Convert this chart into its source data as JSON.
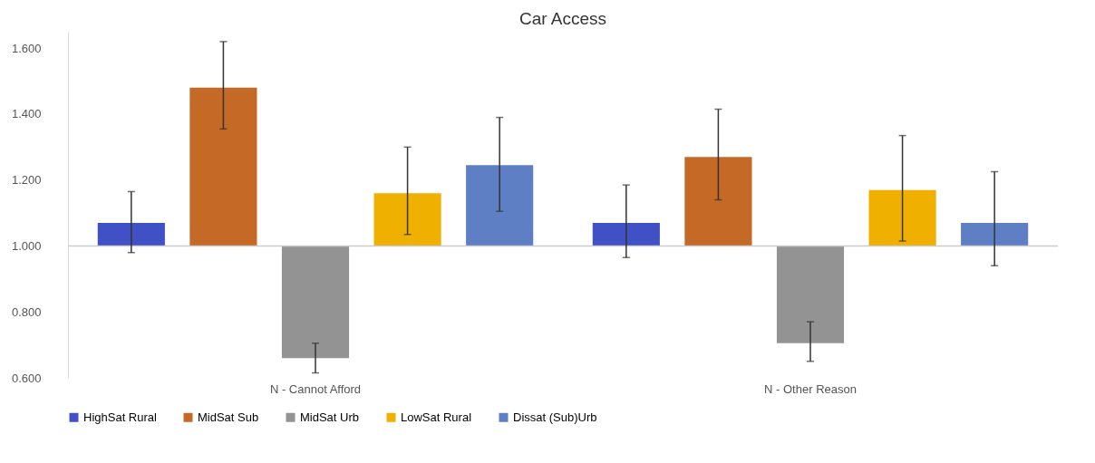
{
  "chart_data": {
    "type": "bar",
    "title": "Car Access",
    "categories": [
      "N - Cannot Afford",
      "N - Other Reason"
    ],
    "series": [
      {
        "name": "HighSat Rural",
        "color": "#3f51c4",
        "base": [
          1,
          1
        ],
        "values": [
          0.07,
          0.07
        ],
        "errors": [
          [
            0.98,
            1.165
          ],
          [
            0.965,
            1.185
          ]
        ]
      },
      {
        "name": "MidSat Sub",
        "color": "#c46a26",
        "base": [
          1,
          1
        ],
        "values": [
          0.48,
          0.27
        ],
        "errors": [
          [
            1.355,
            1.62
          ],
          [
            1.14,
            1.415
          ]
        ]
      },
      {
        "name": "MidSat Urb",
        "color": "#939393",
        "base": [
          1,
          1
        ],
        "values": [
          -0.34,
          -0.295
        ],
        "errors": [
          [
            0.615,
            0.705
          ],
          [
            0.65,
            0.77
          ]
        ]
      },
      {
        "name": "LowSat Rural",
        "color": "#f0b000",
        "base": [
          1,
          1
        ],
        "values": [
          0.16,
          0.17
        ],
        "errors": [
          [
            1.035,
            1.3
          ],
          [
            1.015,
            1.335
          ]
        ]
      },
      {
        "name": "Dissat (Sub)Urb",
        "color": "#5f7fc4",
        "base": [
          1,
          1
        ],
        "values": [
          0.245,
          0.07
        ],
        "errors": [
          [
            1.105,
            1.39
          ],
          [
            0.94,
            1.225
          ]
        ]
      }
    ],
    "ylim": [
      0.6,
      1.65
    ],
    "yticks": [
      {
        "value": 0.6,
        "label": "0.600"
      },
      {
        "value": 0.8,
        "label": "0.800"
      },
      {
        "value": 1.0,
        "label": "1.000"
      },
      {
        "value": 1.2,
        "label": "1.200"
      },
      {
        "value": 1.4,
        "label": "1.400"
      },
      {
        "value": 1.6,
        "label": "1.600"
      }
    ],
    "ref_lines": [
      {
        "axis": "y",
        "value": 1.0,
        "color": "#cccccc"
      }
    ],
    "grid": false,
    "legend": "bottom"
  }
}
